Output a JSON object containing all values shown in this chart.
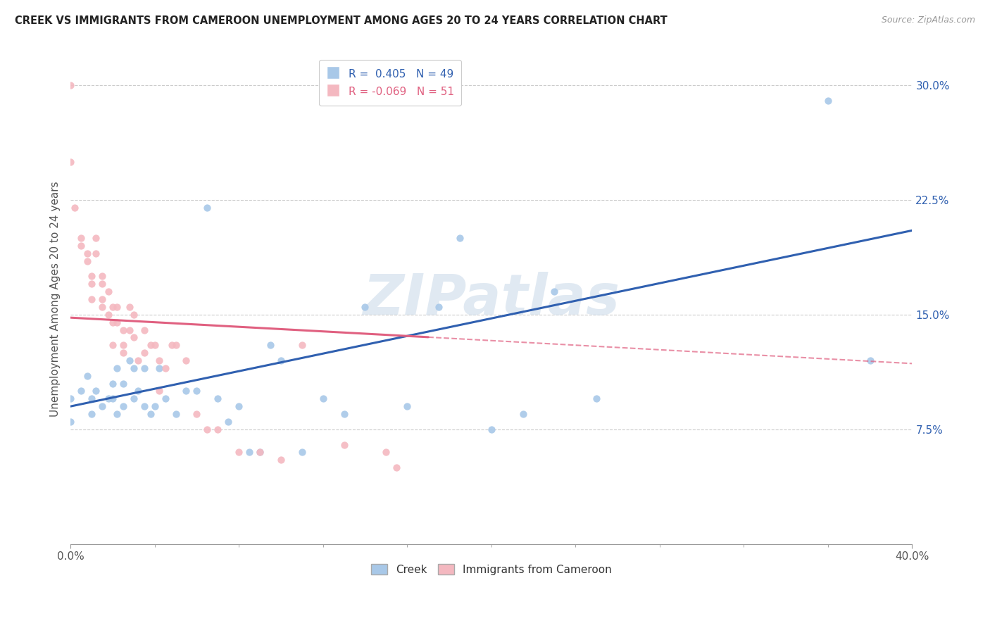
{
  "title": "CREEK VS IMMIGRANTS FROM CAMEROON UNEMPLOYMENT AMONG AGES 20 TO 24 YEARS CORRELATION CHART",
  "source": "Source: ZipAtlas.com",
  "ylabel": "Unemployment Among Ages 20 to 24 years",
  "xlim": [
    0.0,
    0.4
  ],
  "ylim": [
    0.0,
    0.32
  ],
  "yticks": [
    0.075,
    0.15,
    0.225,
    0.3
  ],
  "ytick_labels": [
    "7.5%",
    "15.0%",
    "22.5%",
    "30.0%"
  ],
  "r_creek": 0.405,
  "n_creek": 49,
  "r_cameroon": -0.069,
  "n_cameroon": 51,
  "creek_color": "#a8c8e8",
  "cameroon_color": "#f4b8c0",
  "creek_line_color": "#3060b0",
  "cameroon_line_color": "#e06080",
  "watermark": "ZIPatlas",
  "creek_scatter_x": [
    0.0,
    0.0,
    0.005,
    0.008,
    0.01,
    0.01,
    0.012,
    0.015,
    0.018,
    0.02,
    0.02,
    0.022,
    0.022,
    0.025,
    0.025,
    0.028,
    0.03,
    0.03,
    0.032,
    0.035,
    0.035,
    0.038,
    0.04,
    0.042,
    0.045,
    0.05,
    0.055,
    0.06,
    0.065,
    0.07,
    0.075,
    0.08,
    0.085,
    0.09,
    0.095,
    0.1,
    0.11,
    0.12,
    0.13,
    0.14,
    0.16,
    0.175,
    0.185,
    0.2,
    0.215,
    0.23,
    0.25,
    0.36,
    0.38
  ],
  "creek_scatter_y": [
    0.095,
    0.08,
    0.1,
    0.11,
    0.085,
    0.095,
    0.1,
    0.09,
    0.095,
    0.095,
    0.105,
    0.085,
    0.115,
    0.09,
    0.105,
    0.12,
    0.095,
    0.115,
    0.1,
    0.09,
    0.115,
    0.085,
    0.09,
    0.115,
    0.095,
    0.085,
    0.1,
    0.1,
    0.22,
    0.095,
    0.08,
    0.09,
    0.06,
    0.06,
    0.13,
    0.12,
    0.06,
    0.095,
    0.085,
    0.155,
    0.09,
    0.155,
    0.2,
    0.075,
    0.085,
    0.165,
    0.095,
    0.29,
    0.12
  ],
  "cameroon_scatter_x": [
    0.0,
    0.0,
    0.002,
    0.005,
    0.005,
    0.008,
    0.008,
    0.01,
    0.01,
    0.01,
    0.012,
    0.012,
    0.015,
    0.015,
    0.015,
    0.015,
    0.018,
    0.018,
    0.02,
    0.02,
    0.02,
    0.022,
    0.022,
    0.025,
    0.025,
    0.025,
    0.028,
    0.028,
    0.03,
    0.03,
    0.032,
    0.035,
    0.035,
    0.038,
    0.04,
    0.042,
    0.042,
    0.045,
    0.048,
    0.05,
    0.055,
    0.06,
    0.065,
    0.07,
    0.08,
    0.09,
    0.1,
    0.11,
    0.13,
    0.15,
    0.155
  ],
  "cameroon_scatter_y": [
    0.3,
    0.25,
    0.22,
    0.2,
    0.195,
    0.19,
    0.185,
    0.175,
    0.17,
    0.16,
    0.2,
    0.19,
    0.175,
    0.17,
    0.16,
    0.155,
    0.165,
    0.15,
    0.155,
    0.145,
    0.13,
    0.155,
    0.145,
    0.14,
    0.13,
    0.125,
    0.155,
    0.14,
    0.15,
    0.135,
    0.12,
    0.14,
    0.125,
    0.13,
    0.13,
    0.12,
    0.1,
    0.115,
    0.13,
    0.13,
    0.12,
    0.085,
    0.075,
    0.075,
    0.06,
    0.06,
    0.055,
    0.13,
    0.065,
    0.06,
    0.05
  ],
  "creek_line_x": [
    0.0,
    0.4
  ],
  "creek_line_y": [
    0.09,
    0.205
  ],
  "cameroon_line_x": [
    0.0,
    0.4
  ],
  "cameroon_line_y": [
    0.148,
    0.118
  ]
}
